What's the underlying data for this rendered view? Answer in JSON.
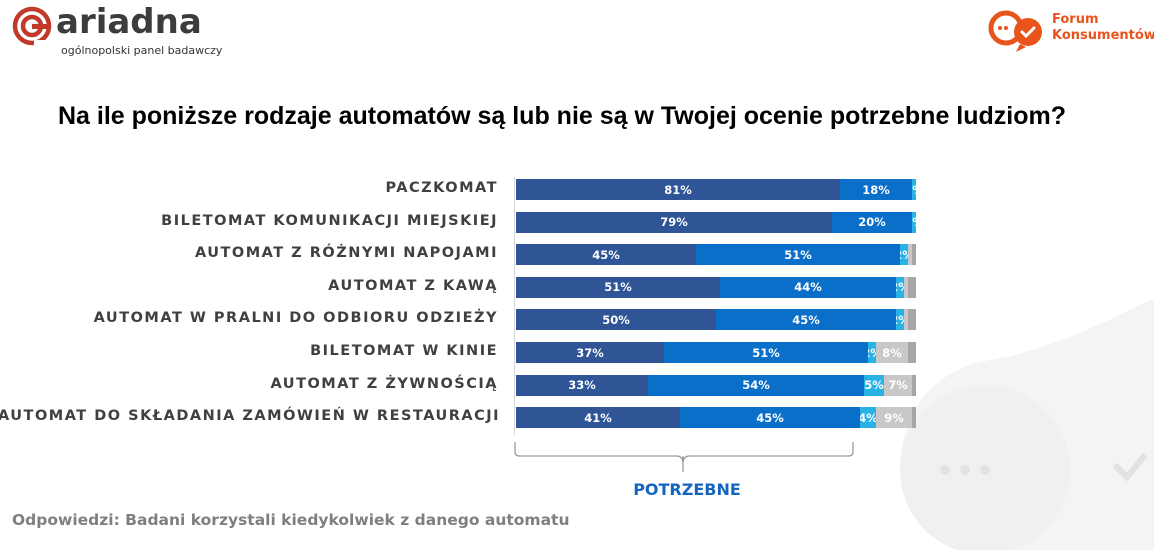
{
  "header": {
    "ariadna_name": "ariadna",
    "ariadna_tagline": "ogólnopolski panel badawczy",
    "fk_line1": "Forum",
    "fk_line2": "Konsumentów"
  },
  "colors": {
    "dark_blue": "#2f5597",
    "mid_blue": "#0a6fc8",
    "light_blue": "#29b2e6",
    "light_gray": "#c8c8c8",
    "dark_gray": "#a6a6a6",
    "brand_orange": "#e8541c"
  },
  "chart_data": {
    "type": "bar",
    "orientation": "horizontal-stacked-100",
    "title": "Na ile poniższe rodzaje automatów są lub nie są w Twojej ocenie potrzebne ludziom?",
    "categories": [
      "PACZKOMAT",
      "BILETOMAT KOMUNIKACJI MIEJSKIEJ",
      "AUTOMAT Z RÓŻNYMI NAPOJAMI",
      "AUTOMAT Z KAWĄ",
      "AUTOMAT W PRALNI DO ODBIORU ODZIEŻY",
      "BILETOMAT W KINIE",
      "AUTOMAT Z ŻYWNOŚCIĄ",
      "AUTOMAT DO SKŁADANIA ZAMÓWIEŃ W RESTAURACJI"
    ],
    "series": [
      {
        "name": "series-1",
        "color": "#2f5597",
        "values": [
          81,
          79,
          45,
          51,
          50,
          37,
          33,
          41
        ],
        "labels": [
          "81%",
          "79%",
          "45%",
          "51%",
          "50%",
          "37%",
          "33%",
          "41%"
        ]
      },
      {
        "name": "series-2",
        "color": "#0a6fc8",
        "values": [
          18,
          20,
          51,
          44,
          45,
          51,
          54,
          45
        ],
        "labels": [
          "18%",
          "20%",
          "51%",
          "44%",
          "45%",
          "51%",
          "54%",
          "45%"
        ]
      },
      {
        "name": "series-3",
        "color": "#29b2e6",
        "values": [
          1,
          1,
          2,
          2,
          2,
          2,
          5,
          4
        ],
        "labels": [
          "1%",
          "1%",
          "2%",
          "2%",
          "2%",
          "2%",
          "5%",
          "4%"
        ]
      },
      {
        "name": "series-4",
        "color": "#c8c8c8",
        "values": [
          0,
          0,
          1,
          1,
          1,
          8,
          7,
          9
        ],
        "labels": [
          "",
          "",
          "",
          "",
          "",
          "8%",
          "7%",
          "9%"
        ]
      },
      {
        "name": "series-5",
        "color": "#a6a6a6",
        "values": [
          0,
          0,
          1,
          2,
          2,
          2,
          1,
          1
        ],
        "labels": [
          "",
          "",
          "",
          "",
          "",
          "",
          "",
          ""
        ]
      }
    ],
    "bracket_label": "POTRZEBNE",
    "xlim": [
      0,
      100
    ]
  },
  "footnote": "Odpowiedzi: Badani korzystali kiedykolwiek z danego automatu",
  "decor": {
    "bg_icon": "chat-bubble-check-icon"
  }
}
